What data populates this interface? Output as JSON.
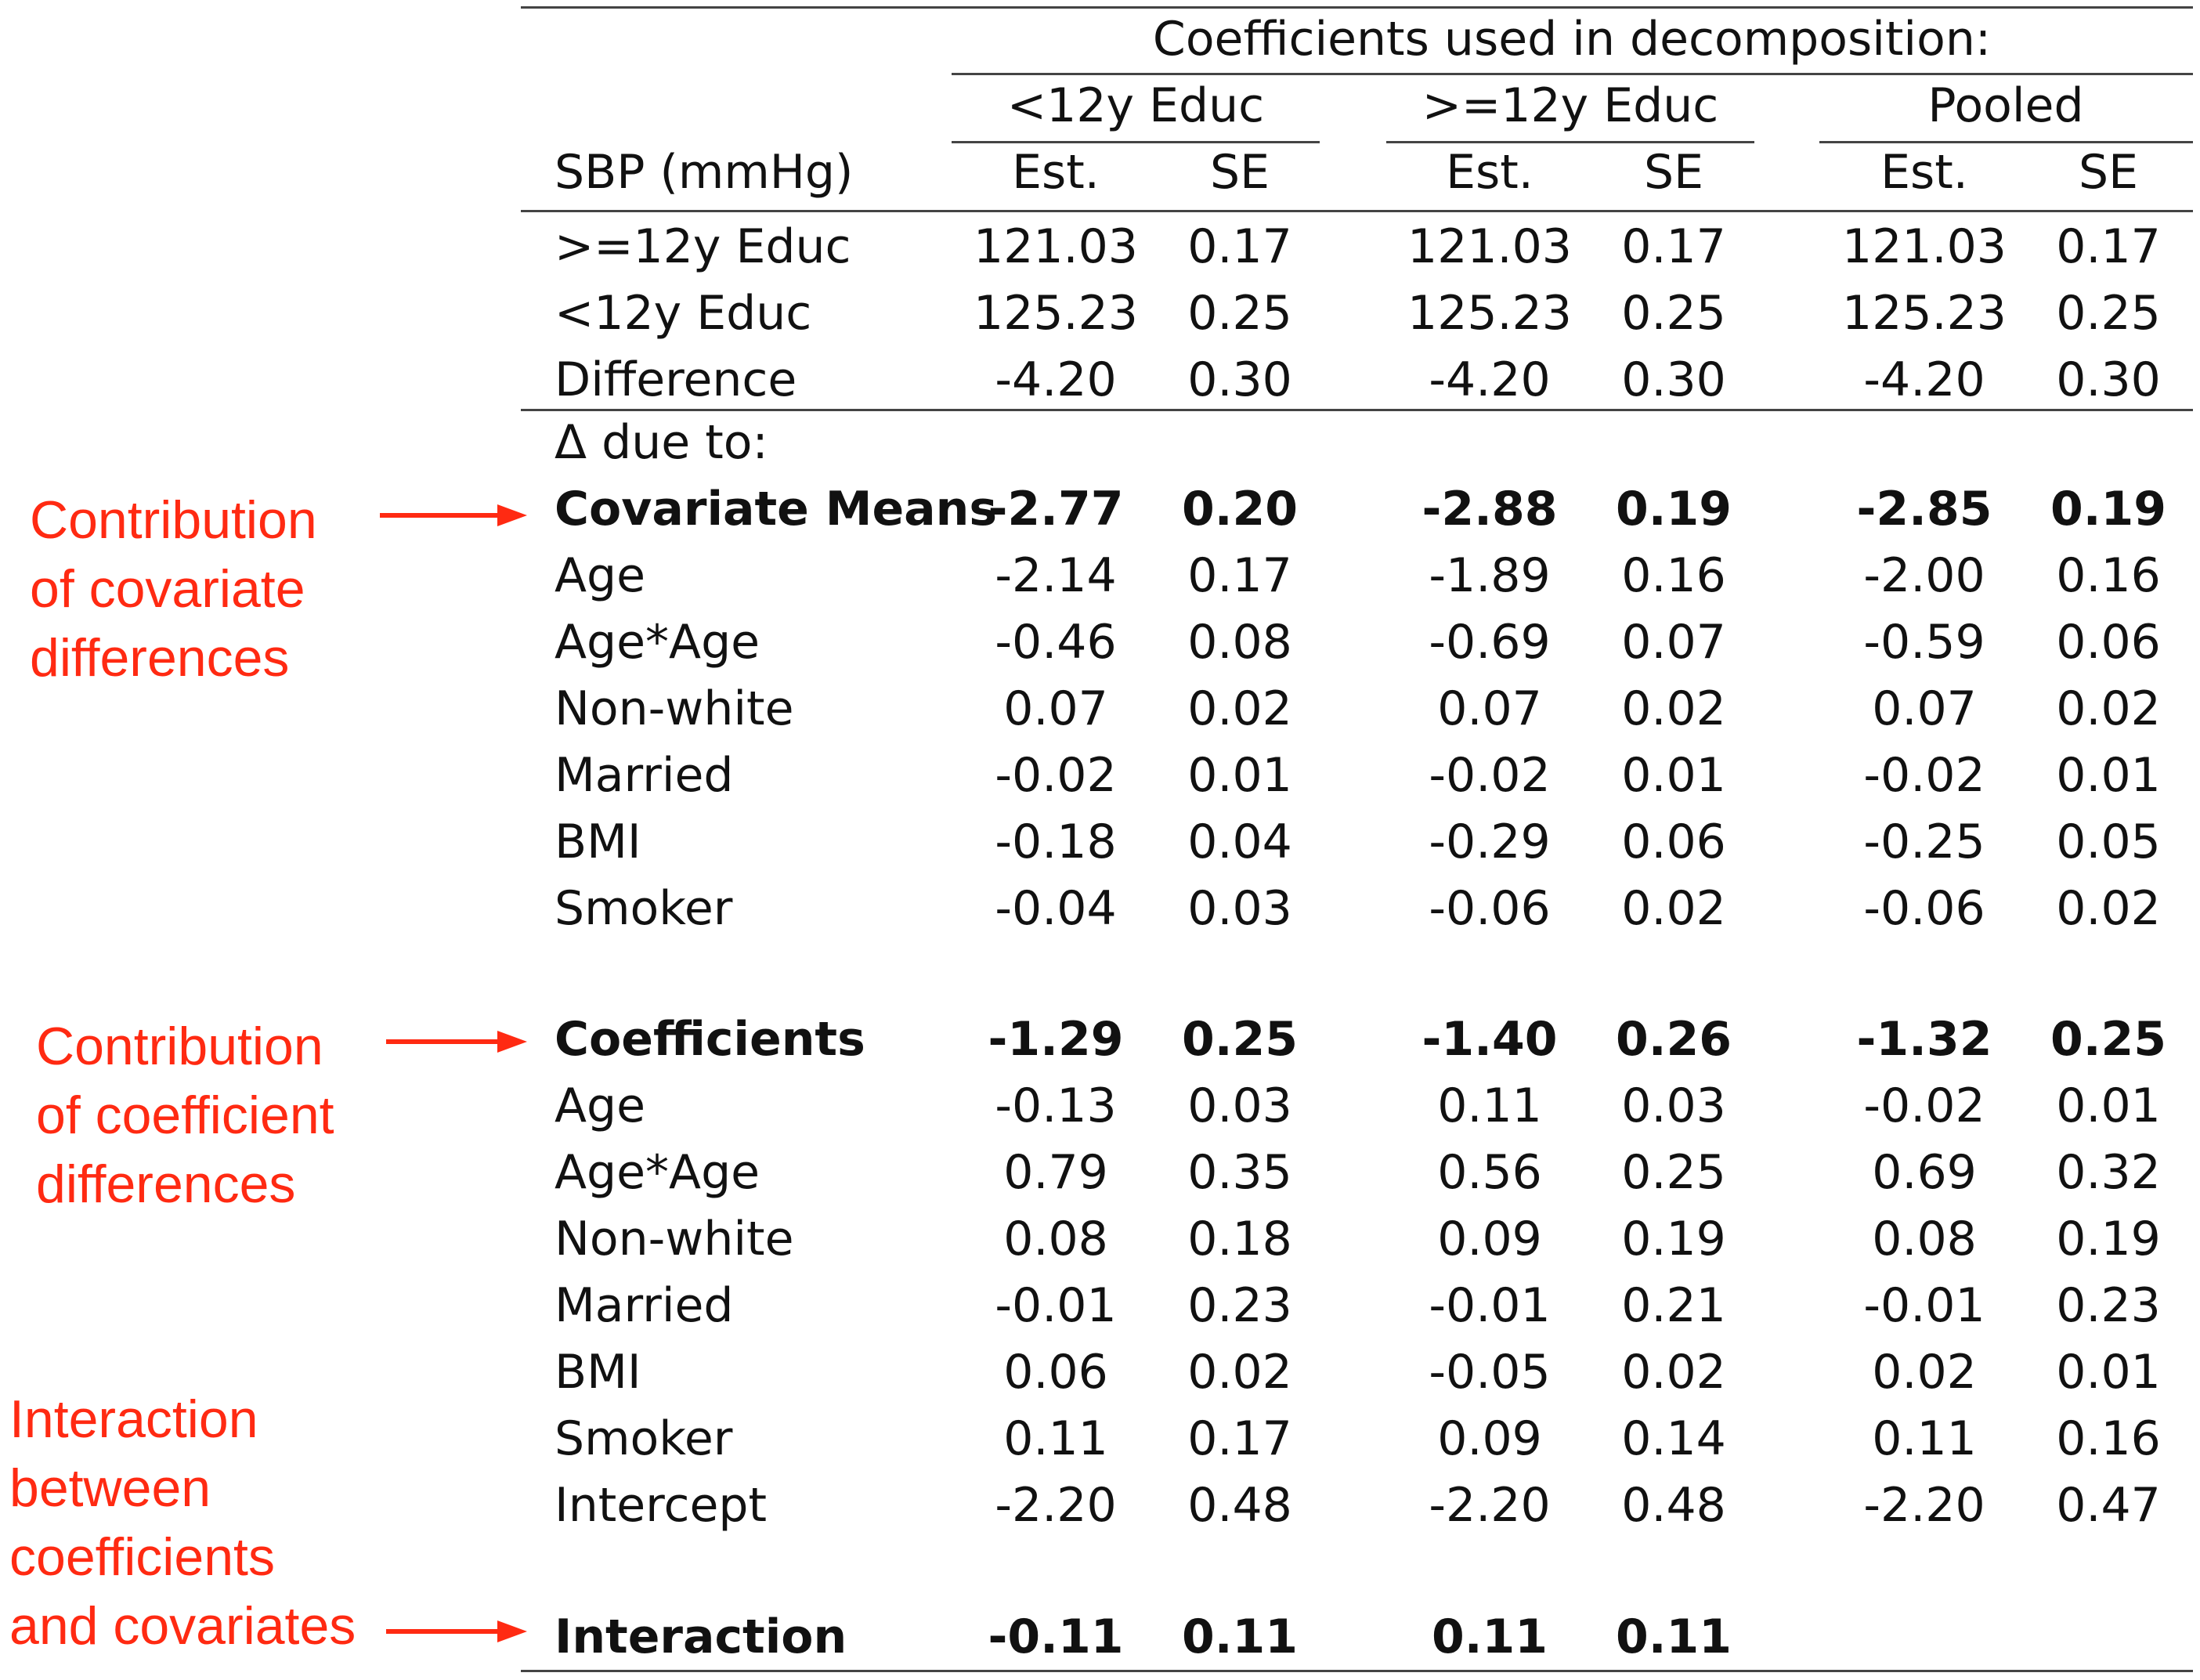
{
  "header": {
    "caption": "Coefficients used in decomposition:",
    "outcome_label": "SBP (mmHg)",
    "groups": [
      "<12y Educ",
      ">=12y Educ",
      "Pooled"
    ],
    "subcols": [
      "Est.",
      "SE",
      "Est.",
      "SE",
      "Est.",
      "SE"
    ]
  },
  "top_rows": [
    {
      "label": ">=12y Educ",
      "values": [
        "121.03",
        "0.17",
        "121.03",
        "0.17",
        "121.03",
        "0.17"
      ]
    },
    {
      "label": "<12y Educ",
      "values": [
        "125.23",
        "0.25",
        "125.23",
        "0.25",
        "125.23",
        "0.25"
      ]
    },
    {
      "label": "Difference",
      "values": [
        "-4.20",
        "0.30",
        "-4.20",
        "0.30",
        "-4.20",
        "0.30"
      ]
    }
  ],
  "delta_label": "Δ due to:",
  "covariate_section": [
    {
      "label": "Covariate Means",
      "bold": true,
      "values": [
        "-2.77",
        "0.20",
        "-2.88",
        "0.19",
        "-2.85",
        "0.19"
      ]
    },
    {
      "label": "Age",
      "values": [
        "-2.14",
        "0.17",
        "-1.89",
        "0.16",
        "-2.00",
        "0.16"
      ]
    },
    {
      "label": "Age*Age",
      "values": [
        "-0.46",
        "0.08",
        "-0.69",
        "0.07",
        "-0.59",
        "0.06"
      ]
    },
    {
      "label": "Non-white",
      "values": [
        "0.07",
        "0.02",
        "0.07",
        "0.02",
        "0.07",
        "0.02"
      ]
    },
    {
      "label": "Married",
      "values": [
        "-0.02",
        "0.01",
        "-0.02",
        "0.01",
        "-0.02",
        "0.01"
      ]
    },
    {
      "label": "BMI",
      "values": [
        "-0.18",
        "0.04",
        "-0.29",
        "0.06",
        "-0.25",
        "0.05"
      ]
    },
    {
      "label": "Smoker",
      "values": [
        "-0.04",
        "0.03",
        "-0.06",
        "0.02",
        "-0.06",
        "0.02"
      ]
    }
  ],
  "coefficient_section": [
    {
      "label": "Coefficients",
      "bold": true,
      "values": [
        "-1.29",
        "0.25",
        "-1.40",
        "0.26",
        "-1.32",
        "0.25"
      ]
    },
    {
      "label": "Age",
      "values": [
        "-0.13",
        "0.03",
        "0.11",
        "0.03",
        "-0.02",
        "0.01"
      ]
    },
    {
      "label": "Age*Age",
      "values": [
        "0.79",
        "0.35",
        "0.56",
        "0.25",
        "0.69",
        "0.32"
      ]
    },
    {
      "label": "Non-white",
      "values": [
        "0.08",
        "0.18",
        "0.09",
        "0.19",
        "0.08",
        "0.19"
      ]
    },
    {
      "label": "Married",
      "values": [
        "-0.01",
        "0.23",
        "-0.01",
        "0.21",
        "-0.01",
        "0.23"
      ]
    },
    {
      "label": "BMI",
      "values": [
        "0.06",
        "0.02",
        "-0.05",
        "0.02",
        "0.02",
        "0.01"
      ]
    },
    {
      "label": "Smoker",
      "values": [
        "0.11",
        "0.17",
        "0.09",
        "0.14",
        "0.11",
        "0.16"
      ]
    },
    {
      "label": "Intercept",
      "values": [
        "-2.20",
        "0.48",
        "-2.20",
        "0.48",
        "-2.20",
        "0.47"
      ]
    }
  ],
  "interaction_row": {
    "label": "Interaction",
    "bold": true,
    "values": [
      "-0.11",
      "0.11",
      "0.11",
      "0.11",
      "",
      ""
    ]
  },
  "annotations": {
    "covariate": [
      "Contribution",
      "of covariate",
      "differences"
    ],
    "coefficient": [
      "Contribution",
      "of coefficient",
      "differences"
    ],
    "interaction": [
      "Interaction",
      "between",
      "coefficients",
      "and covariates"
    ],
    "color": "#ff2a12"
  }
}
